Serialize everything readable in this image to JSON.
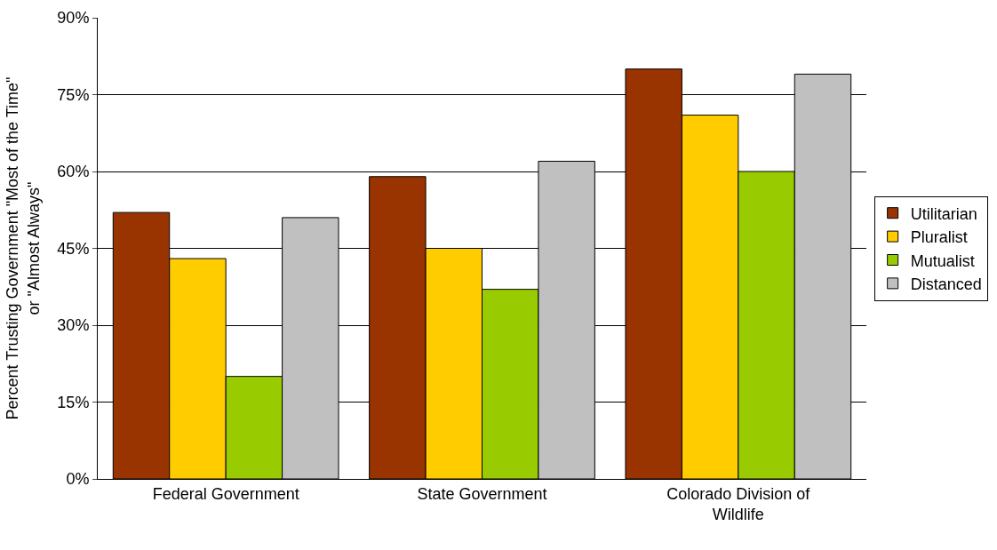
{
  "chart_data": {
    "type": "bar",
    "ylabel": "Percent Trusting Government \"Most of the Time\" or \"Almost Always\"",
    "categories": [
      "Federal Government",
      "State Government",
      "Colorado Division of Wildlife"
    ],
    "series": [
      {
        "name": "Utilitarian",
        "color": "#993300",
        "values": [
          52,
          59,
          80
        ]
      },
      {
        "name": "Pluralist",
        "color": "#ffcc00",
        "values": [
          43,
          45,
          71
        ]
      },
      {
        "name": "Mutualist",
        "color": "#99cc00",
        "values": [
          20,
          37,
          60
        ]
      },
      {
        "name": "Distanced",
        "color": "#c0c0c0",
        "values": [
          51,
          62,
          79
        ]
      }
    ],
    "ylim": [
      0,
      90
    ],
    "yticks": [
      {
        "value": 0,
        "label": "0%"
      },
      {
        "value": 15,
        "label": "15%"
      },
      {
        "value": 30,
        "label": "30%"
      },
      {
        "value": 45,
        "label": "45%"
      },
      {
        "value": 60,
        "label": "60%"
      },
      {
        "value": 75,
        "label": "75%"
      },
      {
        "value": 90,
        "label": "90%"
      }
    ],
    "grid": "y",
    "legend": "right"
  }
}
